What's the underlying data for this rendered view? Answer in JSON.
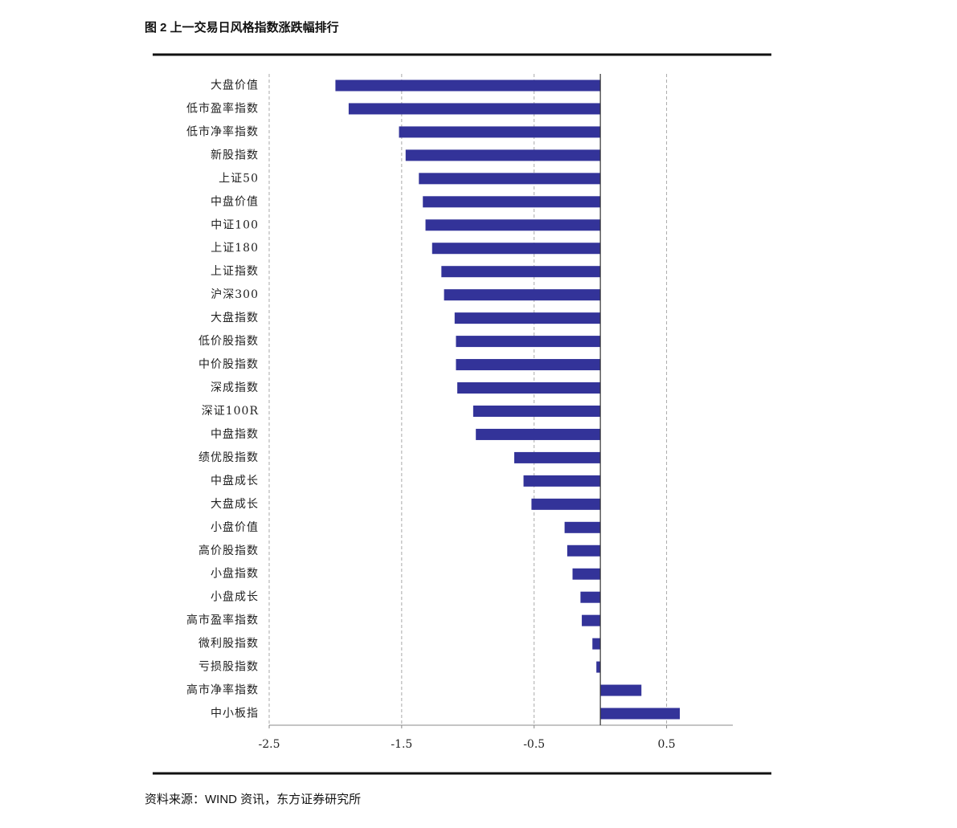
{
  "chart_data": {
    "type": "hbar",
    "title": "图 2  上一交易日风格指数涨跌幅排行",
    "source": "资料来源：WIND 资讯，东方证券研究所",
    "categories": [
      "大盘价值",
      "低市盈率指数",
      "低市净率指数",
      "新股指数",
      "上证50",
      "中盘价值",
      "中证100",
      "上证180",
      "上证指数",
      "沪深300",
      "大盘指数",
      "低价股指数",
      "中价股指数",
      "深成指数",
      "深证100R",
      "中盘指数",
      "绩优股指数",
      "中盘成长",
      "大盘成长",
      "小盘价值",
      "高价股指数",
      "小盘指数",
      "小盘成长",
      "高市盈率指数",
      "微利股指数",
      "亏损股指数",
      "高市净率指数",
      "中小板指"
    ],
    "values": [
      -2.0,
      -1.9,
      -1.52,
      -1.47,
      -1.37,
      -1.34,
      -1.32,
      -1.27,
      -1.2,
      -1.18,
      -1.1,
      -1.09,
      -1.09,
      -1.08,
      -0.96,
      -0.94,
      -0.65,
      -0.58,
      -0.52,
      -0.27,
      -0.25,
      -0.21,
      -0.15,
      -0.14,
      -0.06,
      -0.03,
      0.31,
      0.6
    ],
    "color": "#333399",
    "xlim": [
      -2.5,
      1.0
    ],
    "xticks": [
      -2.5,
      -1.5,
      -0.5,
      0.5
    ],
    "grid": true
  }
}
